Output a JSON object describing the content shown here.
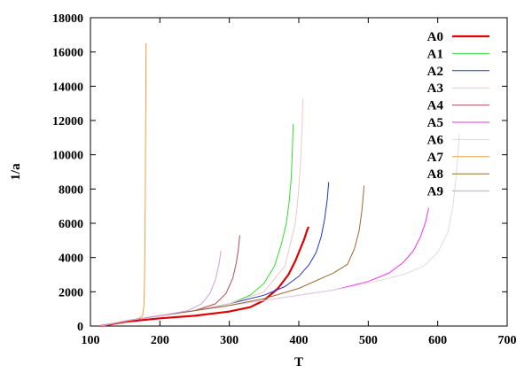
{
  "chart_data": {
    "type": "line",
    "title": "",
    "xlabel": "T",
    "ylabel": "1/a",
    "xlim": [
      100,
      700
    ],
    "ylim": [
      0,
      18000
    ],
    "xticks": [
      100,
      200,
      300,
      400,
      500,
      600,
      700
    ],
    "yticks": [
      0,
      2000,
      4000,
      6000,
      8000,
      10000,
      12000,
      14000,
      16000,
      18000
    ],
    "grid": false,
    "legend_position": "top-right",
    "series": [
      {
        "name": "A0",
        "color": "#e00000",
        "thick": true,
        "x": [
          115,
          150,
          200,
          250,
          300,
          330,
          350,
          370,
          385,
          395,
          402,
          408,
          412,
          414
        ],
        "y": [
          0,
          250,
          450,
          600,
          850,
          1100,
          1500,
          2200,
          3000,
          3800,
          4500,
          5100,
          5600,
          5800
        ]
      },
      {
        "name": "A1",
        "color": "#33dd33",
        "x": [
          115,
          150,
          200,
          250,
          300,
          330,
          350,
          365,
          375,
          382,
          386,
          389,
          391,
          392
        ],
        "y": [
          0,
          300,
          600,
          900,
          1300,
          1800,
          2500,
          3500,
          4800,
          6000,
          7200,
          8600,
          10500,
          11800
        ]
      },
      {
        "name": "A2",
        "color": "#2233cc",
        "x": [
          115,
          150,
          200,
          250,
          300,
          350,
          380,
          400,
          415,
          425,
          432,
          437,
          441,
          443
        ],
        "y": [
          0,
          300,
          600,
          900,
          1300,
          1800,
          2300,
          2900,
          3600,
          4300,
          5200,
          6200,
          7400,
          8400
        ]
      },
      {
        "name": "A3",
        "color": "#f0c8c8",
        "x": [
          115,
          150,
          200,
          250,
          300,
          350,
          380,
          395,
          400,
          403,
          405,
          406
        ],
        "y": [
          0,
          300,
          600,
          900,
          1300,
          2000,
          3500,
          6000,
          8000,
          10000,
          12000,
          13300
        ]
      },
      {
        "name": "A4",
        "color": "#b05050",
        "x": [
          115,
          150,
          200,
          250,
          280,
          295,
          305,
          310,
          313,
          315
        ],
        "y": [
          0,
          300,
          600,
          900,
          1300,
          1900,
          2800,
          3700,
          4500,
          5300
        ]
      },
      {
        "name": "A5",
        "color": "#ee33ee",
        "x": [
          115,
          150,
          200,
          250,
          300,
          350,
          400,
          450,
          500,
          530,
          550,
          565,
          575,
          582,
          587
        ],
        "y": [
          0,
          300,
          600,
          900,
          1200,
          1500,
          1800,
          2100,
          2600,
          3100,
          3700,
          4400,
          5200,
          6000,
          6900
        ]
      },
      {
        "name": "A6",
        "color": "#dddddd",
        "x": [
          115,
          150,
          200,
          250,
          300,
          350,
          400,
          450,
          500,
          550,
          580,
          600,
          615,
          622,
          626,
          629,
          631
        ],
        "y": [
          0,
          300,
          600,
          900,
          1200,
          1500,
          1800,
          2100,
          2500,
          3000,
          3500,
          4300,
          5500,
          7000,
          8500,
          10000,
          11200
        ]
      },
      {
        "name": "A7",
        "color": "#f0a040",
        "x": [
          115,
          140,
          160,
          170,
          175,
          177,
          178,
          178.5,
          179,
          179.5,
          180
        ],
        "y": [
          0,
          200,
          350,
          450,
          600,
          1200,
          3000,
          5000,
          8000,
          12000,
          16500
        ]
      },
      {
        "name": "A8",
        "color": "#9a6a30",
        "x": [
          115,
          150,
          200,
          250,
          300,
          350,
          400,
          450,
          470,
          480,
          487,
          491,
          494
        ],
        "y": [
          0,
          300,
          600,
          900,
          1200,
          1600,
          2200,
          3100,
          3600,
          4500,
          5600,
          6800,
          8200
        ]
      },
      {
        "name": "A9",
        "color": "#c8a0e0",
        "x": [
          115,
          150,
          200,
          240,
          260,
          272,
          280,
          285,
          288
        ],
        "y": [
          0,
          300,
          600,
          900,
          1300,
          1900,
          2700,
          3600,
          4400
        ]
      }
    ]
  }
}
